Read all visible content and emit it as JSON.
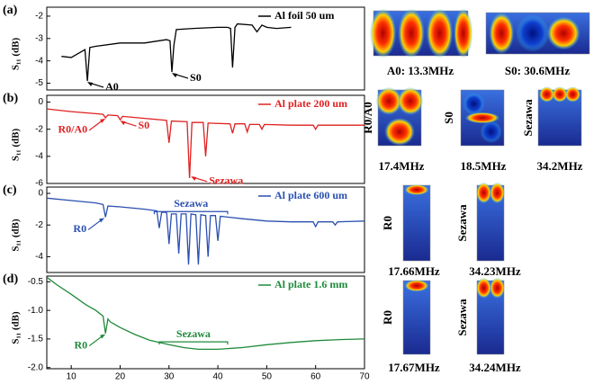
{
  "chart_data": [
    {
      "type": "line",
      "panel_label": "(a)",
      "y_label": "S₁₁ (dB)",
      "xlim": [
        5,
        70
      ],
      "ylim": [
        -5.3,
        -1.6
      ],
      "yticks": [
        -2,
        -3,
        -4,
        -5
      ],
      "legend": "upper right",
      "series": [
        {
          "name": "Al foil 50 um",
          "color": "#000000",
          "x": [
            8,
            10,
            12,
            12.8,
            13.3,
            13.8,
            15,
            20,
            25,
            28,
            29.5,
            30.2,
            30.6,
            31,
            31.5,
            35,
            40,
            42,
            42.6,
            43,
            43.5,
            44,
            47,
            48,
            49,
            50,
            52,
            55
          ],
          "values": [
            -3.8,
            -3.85,
            -3.6,
            -3.5,
            -4.9,
            -3.4,
            -3.35,
            -3.2,
            -3.2,
            -3.1,
            -3.05,
            -3.1,
            -4.5,
            -3.3,
            -2.6,
            -2.55,
            -2.5,
            -2.5,
            -2.55,
            -4.3,
            -2.5,
            -2.35,
            -2.4,
            -2.7,
            -2.4,
            -2.5,
            -2.55,
            -2.5
          ]
        }
      ],
      "annotations": [
        {
          "text": "A0",
          "x": 13.3,
          "y": -4.9,
          "text_side": "right"
        },
        {
          "text": "S0",
          "x": 30.6,
          "y": -4.5,
          "text_side": "right"
        }
      ]
    },
    {
      "type": "line",
      "panel_label": "(b)",
      "y_label": "S₁₁ (dB)",
      "xlim": [
        5,
        70
      ],
      "ylim": [
        -6,
        0.5
      ],
      "yticks": [
        0,
        -2,
        -4,
        -6
      ],
      "legend": "upper right",
      "series": [
        {
          "name": "Al plate 200 um",
          "color": "#e02020",
          "x": [
            5,
            10,
            15,
            16.5,
            17,
            17.5,
            19.5,
            20,
            20.5,
            25,
            29.5,
            30,
            30.5,
            33.7,
            34.2,
            34.7,
            37,
            37.5,
            38,
            42.5,
            43,
            43.5,
            45.5,
            46,
            46.5,
            48.5,
            49,
            49.5,
            55,
            59.5,
            60,
            60.5,
            65,
            70
          ],
          "values": [
            -0.5,
            -0.7,
            -0.85,
            -0.9,
            -1.15,
            -0.95,
            -1.0,
            -1.3,
            -1.05,
            -1.2,
            -1.35,
            -3.0,
            -1.4,
            -1.45,
            -5.6,
            -1.5,
            -1.5,
            -4.0,
            -1.55,
            -1.6,
            -2.3,
            -1.6,
            -1.6,
            -2.2,
            -1.65,
            -1.65,
            -2.0,
            -1.65,
            -1.7,
            -1.7,
            -2.0,
            -1.7,
            -1.7,
            -1.7
          ]
        }
      ],
      "annotations": [
        {
          "text": "R0/A0",
          "x": 17,
          "y": -1.15,
          "text_side": "left"
        },
        {
          "text": "S0",
          "x": 20,
          "y": -1.3,
          "text_side": "right"
        },
        {
          "text": "Sezawa",
          "x": 34.5,
          "y": -5.4,
          "text_side": "right"
        }
      ]
    },
    {
      "type": "line",
      "panel_label": "(c)",
      "y_label": "S₁₁ (dB)",
      "xlim": [
        5,
        70
      ],
      "ylim": [
        -5,
        0.4
      ],
      "yticks": [
        0,
        -2,
        -4
      ],
      "legend": "upper right",
      "series": [
        {
          "name": "Al plate 600 um",
          "color": "#2a4fb0",
          "x": [
            5,
            10,
            15,
            16.5,
            17,
            17.5,
            20,
            25,
            27.5,
            28,
            28.5,
            29.5,
            30,
            30.5,
            31.5,
            32,
            32.5,
            33.5,
            34,
            34.5,
            35.5,
            36,
            36.5,
            37.5,
            38,
            38.5,
            39.5,
            40,
            40.5,
            42,
            45,
            50,
            55,
            59.5,
            60,
            60.5,
            63.5,
            64,
            64.5,
            70
          ],
          "values": [
            -0.3,
            -0.45,
            -0.6,
            -0.7,
            -1.5,
            -0.8,
            -0.85,
            -1.0,
            -1.1,
            -2.2,
            -1.2,
            -1.2,
            -3.2,
            -1.3,
            -1.3,
            -3.8,
            -1.3,
            -1.3,
            -4.5,
            -1.3,
            -1.35,
            -4.5,
            -1.35,
            -1.4,
            -4.0,
            -1.4,
            -1.4,
            -3.0,
            -1.45,
            -1.5,
            -1.6,
            -1.75,
            -1.8,
            -1.8,
            -2.1,
            -1.8,
            -1.8,
            -2.0,
            -1.8,
            -1.75
          ]
        }
      ],
      "annotations": [
        {
          "text": "R0",
          "x": 16.8,
          "y": -1.5,
          "text_side": "left"
        }
      ],
      "brackets": [
        {
          "text": "Sezawa",
          "x": [
            27,
            42
          ],
          "y": -1.15
        }
      ]
    },
    {
      "type": "line",
      "panel_label": "(d)",
      "y_label": "S₁₁ (dB)",
      "xlim": [
        5,
        70
      ],
      "ylim": [
        -2.02,
        -0.4
      ],
      "yticks": [
        {
          "value": -0.5,
          "label": "-0.5"
        },
        {
          "value": -1.0,
          "label": "-1.0"
        },
        {
          "value": -1.5,
          "label": "-1.5"
        },
        {
          "value": -2.0,
          "label": "-2.0"
        }
      ],
      "xticks": [
        10,
        20,
        30,
        40,
        50,
        60,
        70
      ],
      "legend": "upper right",
      "series": [
        {
          "name": "Al plate 1.6 mm",
          "color": "#1e8a3a",
          "x": [
            5,
            7,
            10,
            13,
            15,
            16.5,
            17,
            17.5,
            18,
            20,
            23,
            26,
            30,
            33,
            36,
            40,
            45,
            50,
            55,
            60,
            65,
            70
          ],
          "values": [
            -0.42,
            -0.55,
            -0.72,
            -0.9,
            -1.0,
            -1.1,
            -1.4,
            -1.15,
            -1.2,
            -1.3,
            -1.42,
            -1.52,
            -1.6,
            -1.65,
            -1.68,
            -1.68,
            -1.65,
            -1.6,
            -1.56,
            -1.53,
            -1.51,
            -1.5
          ]
        }
      ],
      "annotations": [
        {
          "text": "R0",
          "x": 17,
          "y": -1.4,
          "text_side": "left"
        }
      ],
      "brackets": [
        {
          "text": "Sezawa",
          "x": [
            28,
            42
          ],
          "y": -1.55
        }
      ]
    }
  ],
  "mode_images": [
    {
      "caption": "A0: 13.3MHz"
    },
    {
      "caption": "S0: 30.6MHz"
    },
    {
      "name": "R0/A0",
      "frequency": "17.4MHz"
    },
    {
      "name": "S0",
      "frequency": "18.5MHz"
    },
    {
      "name": "Sezawa",
      "frequency": "34.2MHz"
    },
    {
      "name": "R0",
      "frequency": "17.66MHz"
    },
    {
      "name": "Sezawa",
      "frequency": "34.23MHz"
    },
    {
      "name": "R0",
      "frequency": "17.67MHz"
    },
    {
      "name": "Sezawa",
      "frequency": "34.24MHz"
    }
  ]
}
